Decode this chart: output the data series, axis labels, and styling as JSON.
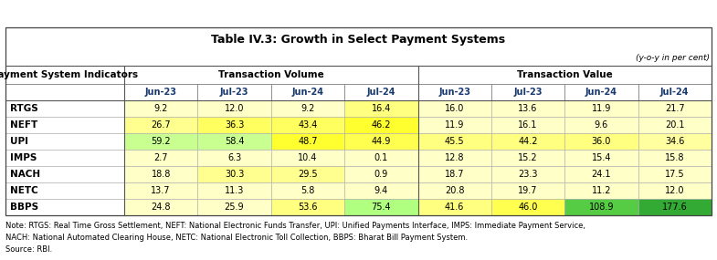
{
  "title": "Table IV.3: Growth in Select Payment Systems",
  "subtitle": "(y-o-y in per cent)",
  "col_header_1": "Payment System Indicators",
  "col_header_2": "Transaction Volume",
  "col_header_3": "Transaction Value",
  "sub_headers": [
    "Jun-23",
    "Jul-23",
    "Jun-24",
    "Jul-24",
    "Jun-23",
    "Jul-23",
    "Jun-24",
    "Jul-24"
  ],
  "rows": [
    {
      "label": "RTGS",
      "values": [
        9.2,
        12.0,
        9.2,
        16.4,
        16.0,
        13.6,
        11.9,
        21.7
      ]
    },
    {
      "label": "NEFT",
      "values": [
        26.7,
        36.3,
        43.4,
        46.2,
        11.9,
        16.1,
        9.6,
        20.1
      ]
    },
    {
      "label": "UPI",
      "values": [
        59.2,
        58.4,
        48.7,
        44.9,
        45.5,
        44.2,
        36.0,
        34.6
      ]
    },
    {
      "label": "IMPS",
      "values": [
        2.7,
        6.3,
        10.4,
        0.1,
        12.8,
        15.2,
        15.4,
        15.8
      ]
    },
    {
      "label": "NACH",
      "values": [
        18.8,
        30.3,
        29.5,
        0.9,
        18.7,
        23.3,
        24.1,
        17.5
      ]
    },
    {
      "label": "NETC",
      "values": [
        13.7,
        11.3,
        5.8,
        9.4,
        20.8,
        19.7,
        11.2,
        12.0
      ]
    },
    {
      "label": "BBPS",
      "values": [
        24.8,
        25.9,
        53.6,
        75.4,
        41.6,
        46.0,
        108.9,
        177.6
      ]
    }
  ],
  "note_lines": [
    "Note: RTGS: Real Time Gross Settlement, NEFT: National Electronic Funds Transfer, UPI: Unified Payments Interface, IMPS: Immediate Payment Service,",
    "NACH: National Automated Clearing House, NETC: National Electronic Toll Collection, BBPS: Bharat Bill Payment System.",
    "Source: RBI."
  ],
  "cell_colors": {
    "RTGS": [
      "#ffffc8",
      "#ffffc8",
      "#ffffc8",
      "#ffff80",
      "#ffffc8",
      "#ffffc8",
      "#ffffc8",
      "#ffffc8"
    ],
    "NEFT": [
      "#ffff90",
      "#ffff60",
      "#ffff60",
      "#ffff30",
      "#ffffc8",
      "#ffffc8",
      "#ffffc8",
      "#ffffc8"
    ],
    "UPI": [
      "#c8ff90",
      "#c8ff90",
      "#ffff30",
      "#ffff50",
      "#ffff80",
      "#ffff80",
      "#ffff80",
      "#ffffa0"
    ],
    "IMPS": [
      "#ffffc8",
      "#ffffc8",
      "#ffffc8",
      "#ffffc8",
      "#ffffc8",
      "#ffffc8",
      "#ffffc8",
      "#ffffc8"
    ],
    "NACH": [
      "#ffffc8",
      "#ffff90",
      "#ffff90",
      "#ffffc8",
      "#ffffc8",
      "#ffffc8",
      "#ffffc8",
      "#ffffc8"
    ],
    "NETC": [
      "#ffffc8",
      "#ffffc8",
      "#ffffc8",
      "#ffffc8",
      "#ffffc8",
      "#ffffc8",
      "#ffffc8",
      "#ffffc8"
    ],
    "BBPS": [
      "#ffffc8",
      "#ffffc8",
      "#ffff80",
      "#b0ff80",
      "#ffff80",
      "#ffff50",
      "#55cc44",
      "#33aa33"
    ]
  },
  "fig_w": 7.85,
  "fig_h": 2.85,
  "dpi": 100
}
